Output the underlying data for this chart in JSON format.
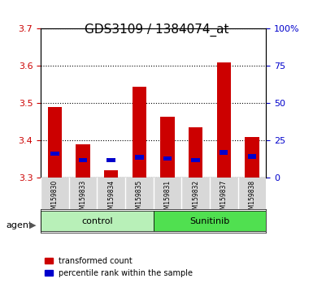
{
  "title": "GDS3109 / 1384074_at",
  "samples": [
    "GSM159830",
    "GSM159833",
    "GSM159834",
    "GSM159835",
    "GSM159831",
    "GSM159832",
    "GSM159837",
    "GSM159838"
  ],
  "red_values": [
    3.49,
    3.39,
    3.32,
    3.545,
    3.465,
    3.435,
    3.61,
    3.41
  ],
  "blue_values": [
    3.365,
    3.348,
    3.348,
    3.355,
    3.352,
    3.348,
    3.368,
    3.358
  ],
  "y_min": 3.3,
  "y_max": 3.7,
  "y_ticks": [
    3.3,
    3.4,
    3.5,
    3.6,
    3.7
  ],
  "y2_ticks": [
    0,
    25,
    50,
    75,
    100
  ],
  "y2_labels": [
    "0",
    "25",
    "50",
    "75",
    "100%"
  ],
  "groups": [
    {
      "label": "control",
      "indices": [
        0,
        1,
        2,
        3
      ],
      "color": "#b8f0b8"
    },
    {
      "label": "Sunitinib",
      "indices": [
        4,
        5,
        6,
        7
      ],
      "color": "#50e050"
    }
  ],
  "bar_width": 0.5,
  "blue_bar_width": 0.3,
  "blue_bar_height": 0.012,
  "label_color_red": "#cc0000",
  "label_color_blue": "#0000cc",
  "bg_color": "#d8d8d8",
  "plot_bg_color": "#ffffff",
  "grid_color": "#000000",
  "agent_label": "agent",
  "legend_red": "transformed count",
  "legend_blue": "percentile rank within the sample"
}
